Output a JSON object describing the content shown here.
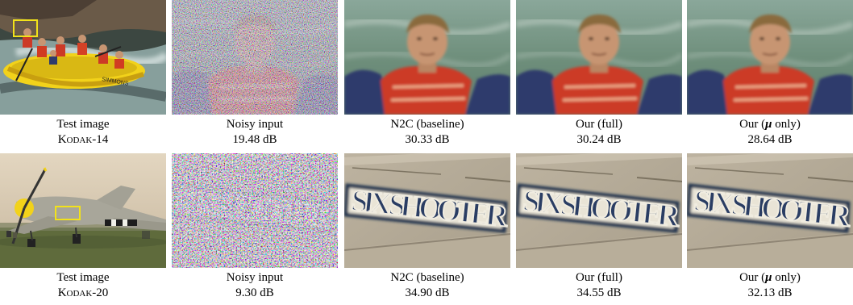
{
  "rows": [
    {
      "test_image_name": "Kodak-14",
      "cells": [
        {
          "title": "Test image",
          "value": "Kodak-14"
        },
        {
          "title": "Noisy input",
          "value": "19.48 dB"
        },
        {
          "title": "N2C (baseline)",
          "value": "30.33 dB"
        },
        {
          "title": "Our (full)",
          "value": "30.24 dB"
        },
        {
          "title_prefix": "Our (",
          "title_symbol": "μ",
          "title_suffix": " only)",
          "value": "28.64 dB"
        }
      ]
    },
    {
      "test_image_name": "Kodak-20",
      "cells": [
        {
          "title": "Test image",
          "value": "Kodak-20"
        },
        {
          "title": "Noisy input",
          "value": "9.30 dB"
        },
        {
          "title": "N2C (baseline)",
          "value": "34.90 dB"
        },
        {
          "title": "Our (full)",
          "value": "34.55 dB"
        },
        {
          "title_prefix": "Our (",
          "title_symbol": "μ",
          "title_suffix": " only)",
          "value": "32.13 dB"
        }
      ]
    }
  ],
  "crop_text": "SIX SHOOTER",
  "colors": {
    "highlight_box": "#f2e21a"
  }
}
